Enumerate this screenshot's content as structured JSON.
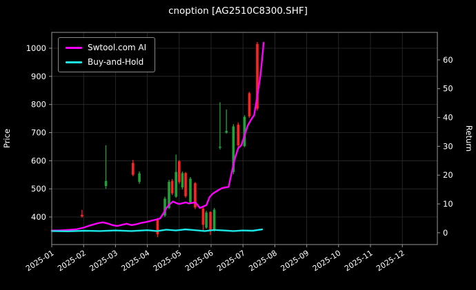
{
  "chart_data": {
    "type": "candlestick+line",
    "title": "cnoption [AG2510C8300.SHF]",
    "ylabel_left": "Price",
    "ylabel_right": "Return",
    "x_unit": "months-since-2025-01",
    "x_ticks": [
      "2025-01",
      "2025-02",
      "2025-03",
      "2025-04",
      "2025-05",
      "2025-06",
      "2025-07",
      "2025-08",
      "2025-09",
      "2025-10",
      "2025-11",
      "2025-12"
    ],
    "price_ticks": [
      400,
      500,
      600,
      700,
      800,
      900,
      1000
    ],
    "return_ticks": [
      0,
      10,
      20,
      30,
      40,
      50,
      60
    ],
    "ylim_left": [
      302,
      1056
    ],
    "ylim_right": [
      -4.1,
      69.6
    ],
    "grid": true,
    "legend": {
      "position": "upper-left",
      "entries": [
        {
          "name": "Swtool.com AI",
          "color": "#ff00ff"
        },
        {
          "name": "Buy-and-Hold",
          "color": "#1ce6e6"
        }
      ]
    },
    "colors": {
      "background": "#000000",
      "text": "#ffffff",
      "grid": "#2e2e2e",
      "spine": "#999999",
      "up": "#1fa339",
      "down": "#ff2222"
    },
    "series": [
      {
        "name": "Swtool.com AI",
        "color": "#ff00ff",
        "points": [
          [
            0.0,
            352
          ],
          [
            0.25,
            352
          ],
          [
            0.5,
            354
          ],
          [
            0.75,
            356
          ],
          [
            1.0,
            362
          ],
          [
            1.2,
            370
          ],
          [
            1.45,
            378
          ],
          [
            1.6,
            381
          ],
          [
            1.75,
            377
          ],
          [
            1.9,
            371
          ],
          [
            2.05,
            368
          ],
          [
            2.2,
            372
          ],
          [
            2.35,
            376
          ],
          [
            2.5,
            371
          ],
          [
            2.65,
            374
          ],
          [
            2.8,
            379
          ],
          [
            2.95,
            382
          ],
          [
            3.1,
            386
          ],
          [
            3.25,
            390
          ],
          [
            3.4,
            395
          ],
          [
            3.5,
            412
          ],
          [
            3.6,
            432
          ],
          [
            3.7,
            445
          ],
          [
            3.8,
            455
          ],
          [
            3.9,
            450
          ],
          [
            4.0,
            446
          ],
          [
            4.1,
            449
          ],
          [
            4.2,
            452
          ],
          [
            4.3,
            448
          ],
          [
            4.4,
            450
          ],
          [
            4.5,
            452
          ],
          [
            4.55,
            446
          ],
          [
            4.65,
            432
          ],
          [
            4.75,
            437
          ],
          [
            4.85,
            442
          ],
          [
            4.95,
            470
          ],
          [
            5.05,
            483
          ],
          [
            5.15,
            490
          ],
          [
            5.25,
            497
          ],
          [
            5.35,
            503
          ],
          [
            5.45,
            505
          ],
          [
            5.55,
            507
          ],
          [
            5.65,
            560
          ],
          [
            5.75,
            610
          ],
          [
            5.85,
            645
          ],
          [
            5.95,
            655
          ],
          [
            6.05,
            690
          ],
          [
            6.15,
            725
          ],
          [
            6.25,
            745
          ],
          [
            6.35,
            762
          ],
          [
            6.45,
            830
          ],
          [
            6.55,
            905
          ],
          [
            6.6,
            960
          ],
          [
            6.65,
            1020
          ]
        ]
      },
      {
        "name": "Buy-and-Hold",
        "color": "#1ce6e6",
        "points": [
          [
            0.0,
            350
          ],
          [
            0.5,
            349
          ],
          [
            1.0,
            351
          ],
          [
            1.5,
            350
          ],
          [
            2.0,
            352
          ],
          [
            2.5,
            350
          ],
          [
            3.0,
            353
          ],
          [
            3.3,
            350
          ],
          [
            3.6,
            355
          ],
          [
            3.9,
            352
          ],
          [
            4.2,
            356
          ],
          [
            4.5,
            353
          ],
          [
            4.8,
            350
          ],
          [
            5.1,
            354
          ],
          [
            5.4,
            352
          ],
          [
            5.7,
            350
          ],
          [
            6.0,
            352
          ],
          [
            6.3,
            351
          ],
          [
            6.6,
            356
          ]
        ]
      }
    ],
    "candles": {
      "format": [
        "month",
        "open",
        "high",
        "low",
        "close"
      ],
      "data": [
        [
          0.95,
          408,
          425,
          398,
          402
        ],
        [
          1.7,
          510,
          655,
          500,
          528
        ],
        [
          2.55,
          592,
          603,
          545,
          550
        ],
        [
          2.75,
          525,
          562,
          518,
          555
        ],
        [
          3.32,
          390,
          396,
          328,
          338
        ],
        [
          3.55,
          405,
          472,
          400,
          465
        ],
        [
          3.68,
          432,
          532,
          428,
          525
        ],
        [
          3.78,
          528,
          535,
          478,
          484
        ],
        [
          3.9,
          472,
          622,
          468,
          560
        ],
        [
          4.0,
          598,
          602,
          518,
          524
        ],
        [
          4.1,
          505,
          562,
          498,
          556
        ],
        [
          4.2,
          556,
          560,
          468,
          474
        ],
        [
          4.35,
          452,
          542,
          448,
          536
        ],
        [
          4.5,
          520,
          524,
          428,
          434
        ],
        [
          4.75,
          430,
          434,
          352,
          372
        ],
        [
          4.85,
          362,
          422,
          358,
          416
        ],
        [
          4.98,
          418,
          420,
          336,
          352
        ],
        [
          5.1,
          352,
          432,
          348,
          426
        ],
        [
          5.28,
          648,
          808,
          640,
          650
        ],
        [
          5.48,
          700,
          782,
          696,
          706
        ],
        [
          5.7,
          560,
          730,
          552,
          722
        ],
        [
          5.85,
          728,
          736,
          648,
          655
        ],
        [
          6.05,
          652,
          762,
          648,
          756
        ],
        [
          6.2,
          840,
          845,
          752,
          758
        ],
        [
          6.45,
          1015,
          1022,
          778,
          785
        ]
      ]
    }
  }
}
